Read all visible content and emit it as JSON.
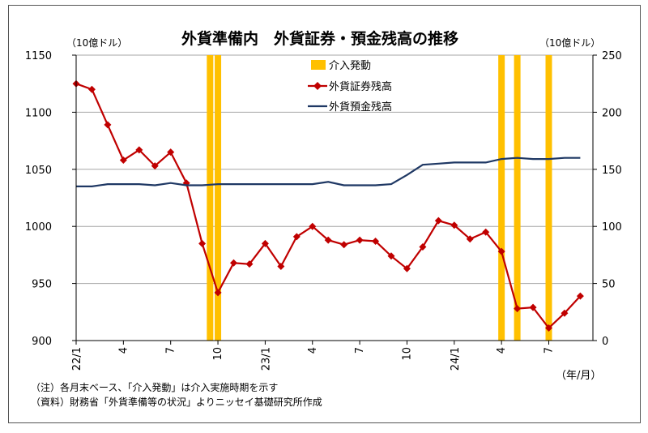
{
  "chart_data": {
    "type": "line",
    "title": "外貨準備内　外貨証券・預金残高の推移",
    "left_unit": "（10億ドル）",
    "right_unit": "（10億ドル）",
    "x_unit": "（年/月）",
    "left_axis": {
      "min": 900,
      "max": 1150,
      "ticks": [
        900,
        950,
        1000,
        1050,
        1100,
        1150
      ]
    },
    "right_axis": {
      "min": 0,
      "max": 250,
      "ticks": [
        0,
        50,
        100,
        150,
        200,
        250
      ]
    },
    "x_tick_labels": [
      {
        "index": 0,
        "label": "22/1",
        "rotate": true
      },
      {
        "index": 3,
        "label": "4"
      },
      {
        "index": 6,
        "label": "7"
      },
      {
        "index": 9,
        "label": "10"
      },
      {
        "index": 12,
        "label": "23/1",
        "rotate": true
      },
      {
        "index": 15,
        "label": "4"
      },
      {
        "index": 18,
        "label": "7"
      },
      {
        "index": 21,
        "label": "10"
      },
      {
        "index": 24,
        "label": "24/1",
        "rotate": true
      },
      {
        "index": 27,
        "label": "4"
      },
      {
        "index": 30,
        "label": "7"
      }
    ],
    "intervention_months": [
      8.5,
      9,
      27,
      28,
      30
    ],
    "series": [
      {
        "name": "外貨証券残高",
        "axis": "left",
        "color": "#c00000",
        "marker": "diamond",
        "values": [
          1125,
          1120,
          1089,
          1058,
          1067,
          1053,
          1065,
          1038,
          985,
          942,
          968,
          967,
          985,
          965,
          991,
          1000,
          988,
          984,
          988,
          987,
          974,
          963,
          982,
          1005,
          1001,
          989,
          995,
          978,
          928,
          929,
          911,
          924,
          939
        ]
      },
      {
        "name": "外貨預金残高",
        "axis": "right",
        "color": "#1f3864",
        "marker": "none",
        "values": [
          135,
          135,
          137,
          137,
          137,
          136,
          138,
          136,
          136,
          137,
          137,
          137,
          137,
          137,
          137,
          137,
          139,
          136,
          136,
          136,
          137,
          145,
          154,
          155,
          156,
          156,
          156,
          159,
          160,
          159,
          159,
          160,
          160
        ]
      }
    ],
    "legend": {
      "intervention_label": "介入発動",
      "position": "top-center"
    },
    "grid": "horizontal",
    "colors": {
      "intervention": "#ffc000",
      "securities": "#c00000",
      "deposits": "#1f3864"
    }
  },
  "notes": [
    "（注）各月末ベース、「介入発動」は介入実施時期を示す",
    "（資料）財務省「外貨準備等の状況」よりニッセイ基礎研究所作成"
  ]
}
